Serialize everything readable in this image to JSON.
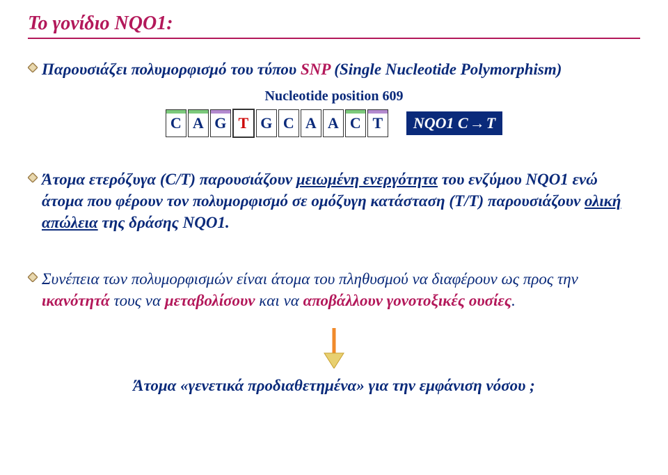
{
  "colors": {
    "accent": "#b3185a",
    "text_blue": "#0a2a7a",
    "red": "#cc0000",
    "bg": "#ffffff",
    "strip_green": "#7cc97c",
    "strip_purple": "#b48bcf",
    "tag_bg": "#0a2a7a",
    "tag_fg": "#ffffff",
    "diamond_outer": "#8a6b3a",
    "diamond_inner": "#d9c18a",
    "arrow_line": "#f08a2a",
    "arrow_head": "#e8d070"
  },
  "title": "Το γονίδιο NQO1:",
  "bullet1": {
    "prefix": "Παρουσιάζει πολυμορφισμό του τύπου ",
    "snp": "SNP",
    "suffix": " (Single Nucleotide Polymorphism)"
  },
  "nucleotide_position_label": "Nucleotide position 609",
  "sequence": {
    "bases": [
      "C",
      "A",
      "G",
      "T",
      "G",
      "C",
      "A",
      "A",
      "C",
      "T"
    ],
    "snp_index": 3,
    "snp_alt": "T",
    "snp_alt_color": "#cc0000",
    "box_border": "#333333",
    "strips": {
      "0": "#7cc97c",
      "1": "#7cc97c",
      "2": "#b48bcf",
      "8": "#7cc97c",
      "9": "#b48bcf"
    }
  },
  "tag": {
    "left": "NQO1 C",
    "arrow": "→",
    "right": "T"
  },
  "bullet2": {
    "pre": "Άτομα ετερόζυγα ",
    "ct": "(C/T)",
    "mid1": " παρουσιάζουν ",
    "mid1b": "μειωμένη ενεργότητα",
    "mid2": " του ενζύμου NQO1 ενώ άτομα που φέρουν τον πολυμορφισμό σε ομόζυγη κατάσταση ",
    "tt": "(T/T)",
    "mid3": " παρουσιάζουν ",
    "loss": "ολική απώλεια",
    "tail": " της δράσης NQO1."
  },
  "bullet3": {
    "pre": "Συνέπεια των πολυμορφισμών είναι άτομα του πληθυσμού να διαφέρουν ως προς την ",
    "cap": "ικανότητά",
    "mid": " τους να  ",
    "met": "μεταβολίσουν",
    "and": " και να ",
    "apo": "αποβάλλουν γονοτοξικές ουσίες",
    "dot": "."
  },
  "final": "Άτομα «γενετικά προδιαθετημένα» για την εμφάνιση νόσου ;"
}
